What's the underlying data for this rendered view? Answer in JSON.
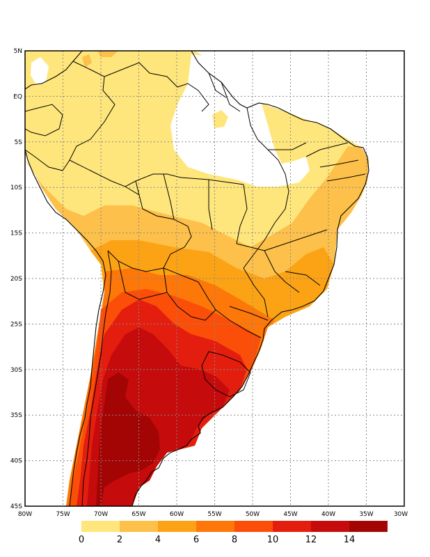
{
  "map": {
    "lat_labels": [
      "5N",
      "EQ",
      "5S",
      "10S",
      "15S",
      "20S",
      "25S",
      "30S",
      "35S",
      "40S",
      "45S"
    ],
    "lon_labels": [
      "80W",
      "75W",
      "70W",
      "65W",
      "60W",
      "55W",
      "50W",
      "45W",
      "40W",
      "35W",
      "30W"
    ],
    "colorbar": {
      "labels": [
        "0",
        "2",
        "4",
        "6",
        "8",
        "10",
        "12",
        "14"
      ],
      "colors": [
        "#fee67c",
        "#fdc04a",
        "#fca315",
        "#fd7709",
        "#fb4e09",
        "#e31e0e",
        "#c50b0b",
        "#a30505"
      ]
    }
  }
}
